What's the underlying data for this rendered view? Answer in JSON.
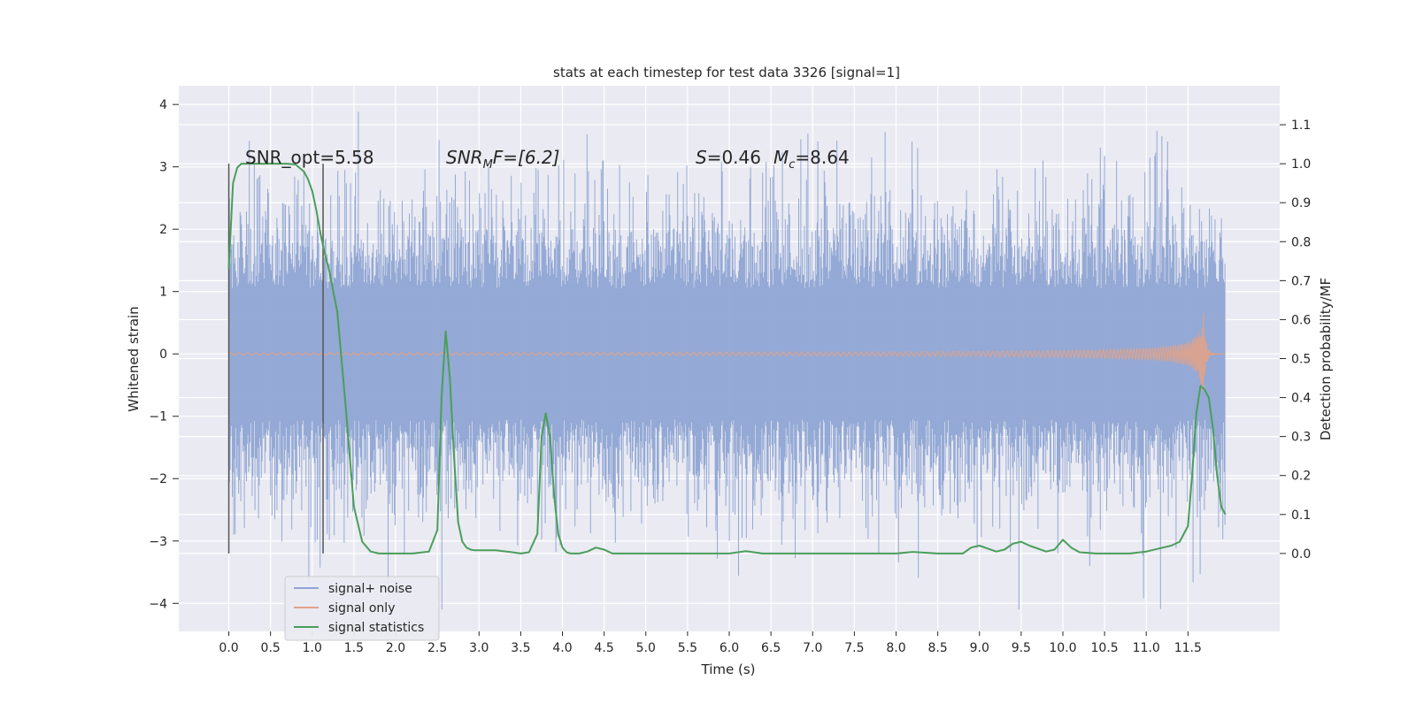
{
  "chart_data": {
    "type": "line",
    "title": "stats at each timestep for test data 3326 [signal=1]",
    "xlabel": "Time (s)",
    "ylabel": "Whitened strain",
    "y2label": "Detection probability/MF",
    "xlim": [
      -0.6,
      12.6
    ],
    "ylim": [
      -4.45,
      4.3
    ],
    "y2lim": [
      -0.2,
      1.2
    ],
    "x_ticks": [
      0.0,
      0.5,
      1.0,
      1.5,
      2.0,
      2.5,
      3.0,
      3.5,
      4.0,
      4.5,
      5.0,
      5.5,
      6.0,
      6.5,
      7.0,
      7.5,
      8.0,
      8.5,
      9.0,
      9.5,
      10.0,
      10.5,
      11.0,
      11.5
    ],
    "x_tick_labels": [
      "0.0",
      "0.5",
      "1.0",
      "1.5",
      "2.0",
      "2.5",
      "3.0",
      "3.5",
      "4.0",
      "4.5",
      "5.0",
      "5.5",
      "6.0",
      "6.5",
      "7.0",
      "7.5",
      "8.0",
      "8.5",
      "9.0",
      "9.5",
      "10.0",
      "10.5",
      "11.0",
      "11.5"
    ],
    "y_ticks": [
      -4,
      -3,
      -2,
      -1,
      0,
      1,
      2,
      3,
      4
    ],
    "y_tick_labels": [
      "−4",
      "−3",
      "−2",
      "−1",
      "0",
      "1",
      "2",
      "3",
      "4"
    ],
    "y2_ticks": [
      0.0,
      0.1,
      0.2,
      0.3,
      0.4,
      0.5,
      0.6,
      0.7,
      0.8,
      0.9,
      1.0,
      1.1
    ],
    "y2_tick_labels": [
      "0.0",
      "0.1",
      "0.2",
      "0.3",
      "0.4",
      "0.5",
      "0.6",
      "0.7",
      "0.8",
      "0.9",
      "1.0",
      "1.1"
    ],
    "grid": true,
    "legend_position": "lower-left",
    "annotations": [
      {
        "text": "SNR_opt=5.58",
        "x": 0.2,
        "y2": 0.99
      },
      {
        "text": "SNR_MF=[6.2]",
        "x": 2.6,
        "y2": 0.99
      },
      {
        "text": "S=0.46   M_c=8.64",
        "x": 5.6,
        "y2": 0.99
      }
    ],
    "annotation_parts": {
      "snr_opt": "SNR_opt=5.58",
      "snr_mf_main": "SNR",
      "snr_mf_sub": "M",
      "snr_mf_rest": "F=[6.2]",
      "s_sym": "S",
      "s_rest": "=0.46",
      "mc_sym": "M",
      "mc_sub": "c",
      "mc_rest": "=8.64"
    },
    "vertical_lines": [
      0.0,
      1.13
    ],
    "vertical_line_range": [
      -3.2,
      3.05
    ],
    "series": [
      {
        "name": "signal+ noise",
        "color": "#8fa5d3",
        "axis": "left",
        "description_envelope": {
          "t_start": 0.0,
          "t_end": 11.95,
          "band_typical": 1.8,
          "max": 3.9,
          "min": -4.1
        }
      },
      {
        "name": "signal only",
        "color": "#e0a28a",
        "axis": "left",
        "chirp": {
          "t_start": 0.0,
          "t_peak": 11.68,
          "t_end": 11.95,
          "peak_amplitude": 0.8
        }
      },
      {
        "name": "signal statistics",
        "color": "#4a9e5a",
        "axis": "right",
        "x": [
          0.0,
          0.05,
          0.1,
          0.15,
          0.2,
          0.3,
          0.4,
          0.5,
          0.6,
          0.7,
          0.8,
          0.9,
          0.95,
          1.0,
          1.05,
          1.1,
          1.15,
          1.2,
          1.3,
          1.4,
          1.5,
          1.6,
          1.7,
          1.8,
          1.9,
          2.0,
          2.2,
          2.4,
          2.5,
          2.55,
          2.6,
          2.65,
          2.7,
          2.75,
          2.8,
          2.85,
          2.9,
          2.95,
          3.0,
          3.2,
          3.4,
          3.5,
          3.6,
          3.7,
          3.75,
          3.8,
          3.85,
          3.9,
          3.95,
          4.0,
          4.05,
          4.1,
          4.2,
          4.3,
          4.4,
          4.5,
          4.55,
          4.6,
          4.7,
          5.0,
          5.5,
          6.0,
          6.2,
          6.4,
          7.0,
          7.5,
          8.0,
          8.2,
          8.5,
          8.8,
          8.9,
          9.0,
          9.2,
          9.3,
          9.4,
          9.5,
          9.6,
          9.8,
          9.9,
          10.0,
          10.1,
          10.2,
          10.4,
          10.8,
          11.0,
          11.2,
          11.3,
          11.4,
          11.5,
          11.55,
          11.6,
          11.65,
          11.7,
          11.75,
          11.8,
          11.85,
          11.9,
          11.95
        ],
        "values": [
          0.73,
          0.95,
          0.99,
          1.0,
          1.0,
          1.0,
          1.0,
          1.0,
          1.0,
          1.0,
          0.998,
          0.98,
          0.96,
          0.93,
          0.88,
          0.82,
          0.77,
          0.73,
          0.62,
          0.38,
          0.12,
          0.03,
          0.005,
          0.0,
          0.0,
          0.0,
          0.0,
          0.005,
          0.06,
          0.4,
          0.57,
          0.45,
          0.25,
          0.08,
          0.03,
          0.015,
          0.01,
          0.008,
          0.008,
          0.008,
          0.003,
          0.0,
          0.003,
          0.05,
          0.3,
          0.36,
          0.3,
          0.15,
          0.05,
          0.015,
          0.003,
          0.0,
          0.0,
          0.005,
          0.015,
          0.01,
          0.005,
          0.0,
          0.0,
          0.0,
          0.0,
          0.0,
          0.006,
          0.0,
          0.0,
          0.0,
          0.0,
          0.004,
          0.0,
          0.0,
          0.015,
          0.02,
          0.005,
          0.01,
          0.025,
          0.03,
          0.02,
          0.005,
          0.01,
          0.035,
          0.015,
          0.003,
          0.0,
          0.0,
          0.005,
          0.015,
          0.02,
          0.03,
          0.07,
          0.2,
          0.36,
          0.43,
          0.42,
          0.4,
          0.32,
          0.2,
          0.12,
          0.1
        ]
      }
    ]
  }
}
